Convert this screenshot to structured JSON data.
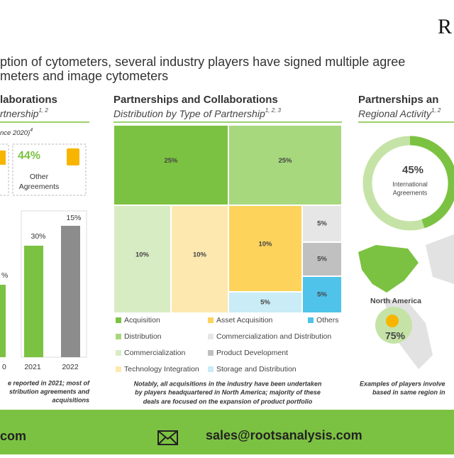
{
  "header": {
    "logo": "R",
    "line1": "ption of cytometers, several industry players have signed multiple agree",
    "line2": "meters and image cytometers"
  },
  "left_panel": {
    "title": "laborations",
    "subtitle": "rtnership",
    "subtitle_sup": "1, 2",
    "period": "nce 2020)",
    "period_sup": "4",
    "stat_value": "44%",
    "stat_label_1": "Other",
    "stat_label_2": "Agreements",
    "bars": [
      {
        "label": "%",
        "year": "0"
      },
      {
        "label": "30%",
        "year": "2021"
      },
      {
        "label": "15%",
        "year": "2022"
      }
    ],
    "note": [
      "e reported in 2021; most of",
      "stribution agreements and",
      "acquisitions"
    ]
  },
  "middle_panel": {
    "title": "Partnerships and Collaborations",
    "subtitle": "Distribution by Type of Partnership",
    "subtitle_sup": "1, 2, 3",
    "cells": [
      {
        "name": "Acquisition",
        "value": "25%"
      },
      {
        "name": "Distribution",
        "value": "25%"
      },
      {
        "name": "Commercialization",
        "value": "10%"
      },
      {
        "name": "Technology Integration",
        "value": "10%"
      },
      {
        "name": "Asset Acquisition",
        "value": "10%"
      },
      {
        "name": "Storage and Distribution",
        "value": "5%"
      },
      {
        "name": "Commercialization and Distribution",
        "value": "5%"
      },
      {
        "name": "Product Development",
        "value": "5%"
      },
      {
        "name": "Others",
        "value": "5%"
      }
    ],
    "note": [
      "Notably, all acquisitions in the industry have been undertaken",
      "by players headquartered in North America; majority of these",
      "deals are focused on the expansion of product portfolio"
    ]
  },
  "right_panel": {
    "title": "Partnerships an",
    "subtitle": "Regional Activity",
    "subtitle_sup": "1, 2",
    "donut_value": "45%",
    "donut_label_1": "International",
    "donut_label_2": "Agreements",
    "region": "North America",
    "region_value": "75%",
    "note": [
      "Examples of players involve",
      "based in same region in"
    ]
  },
  "footer": {
    "website": "com",
    "email": "sales@rootsanalysis.com"
  }
}
